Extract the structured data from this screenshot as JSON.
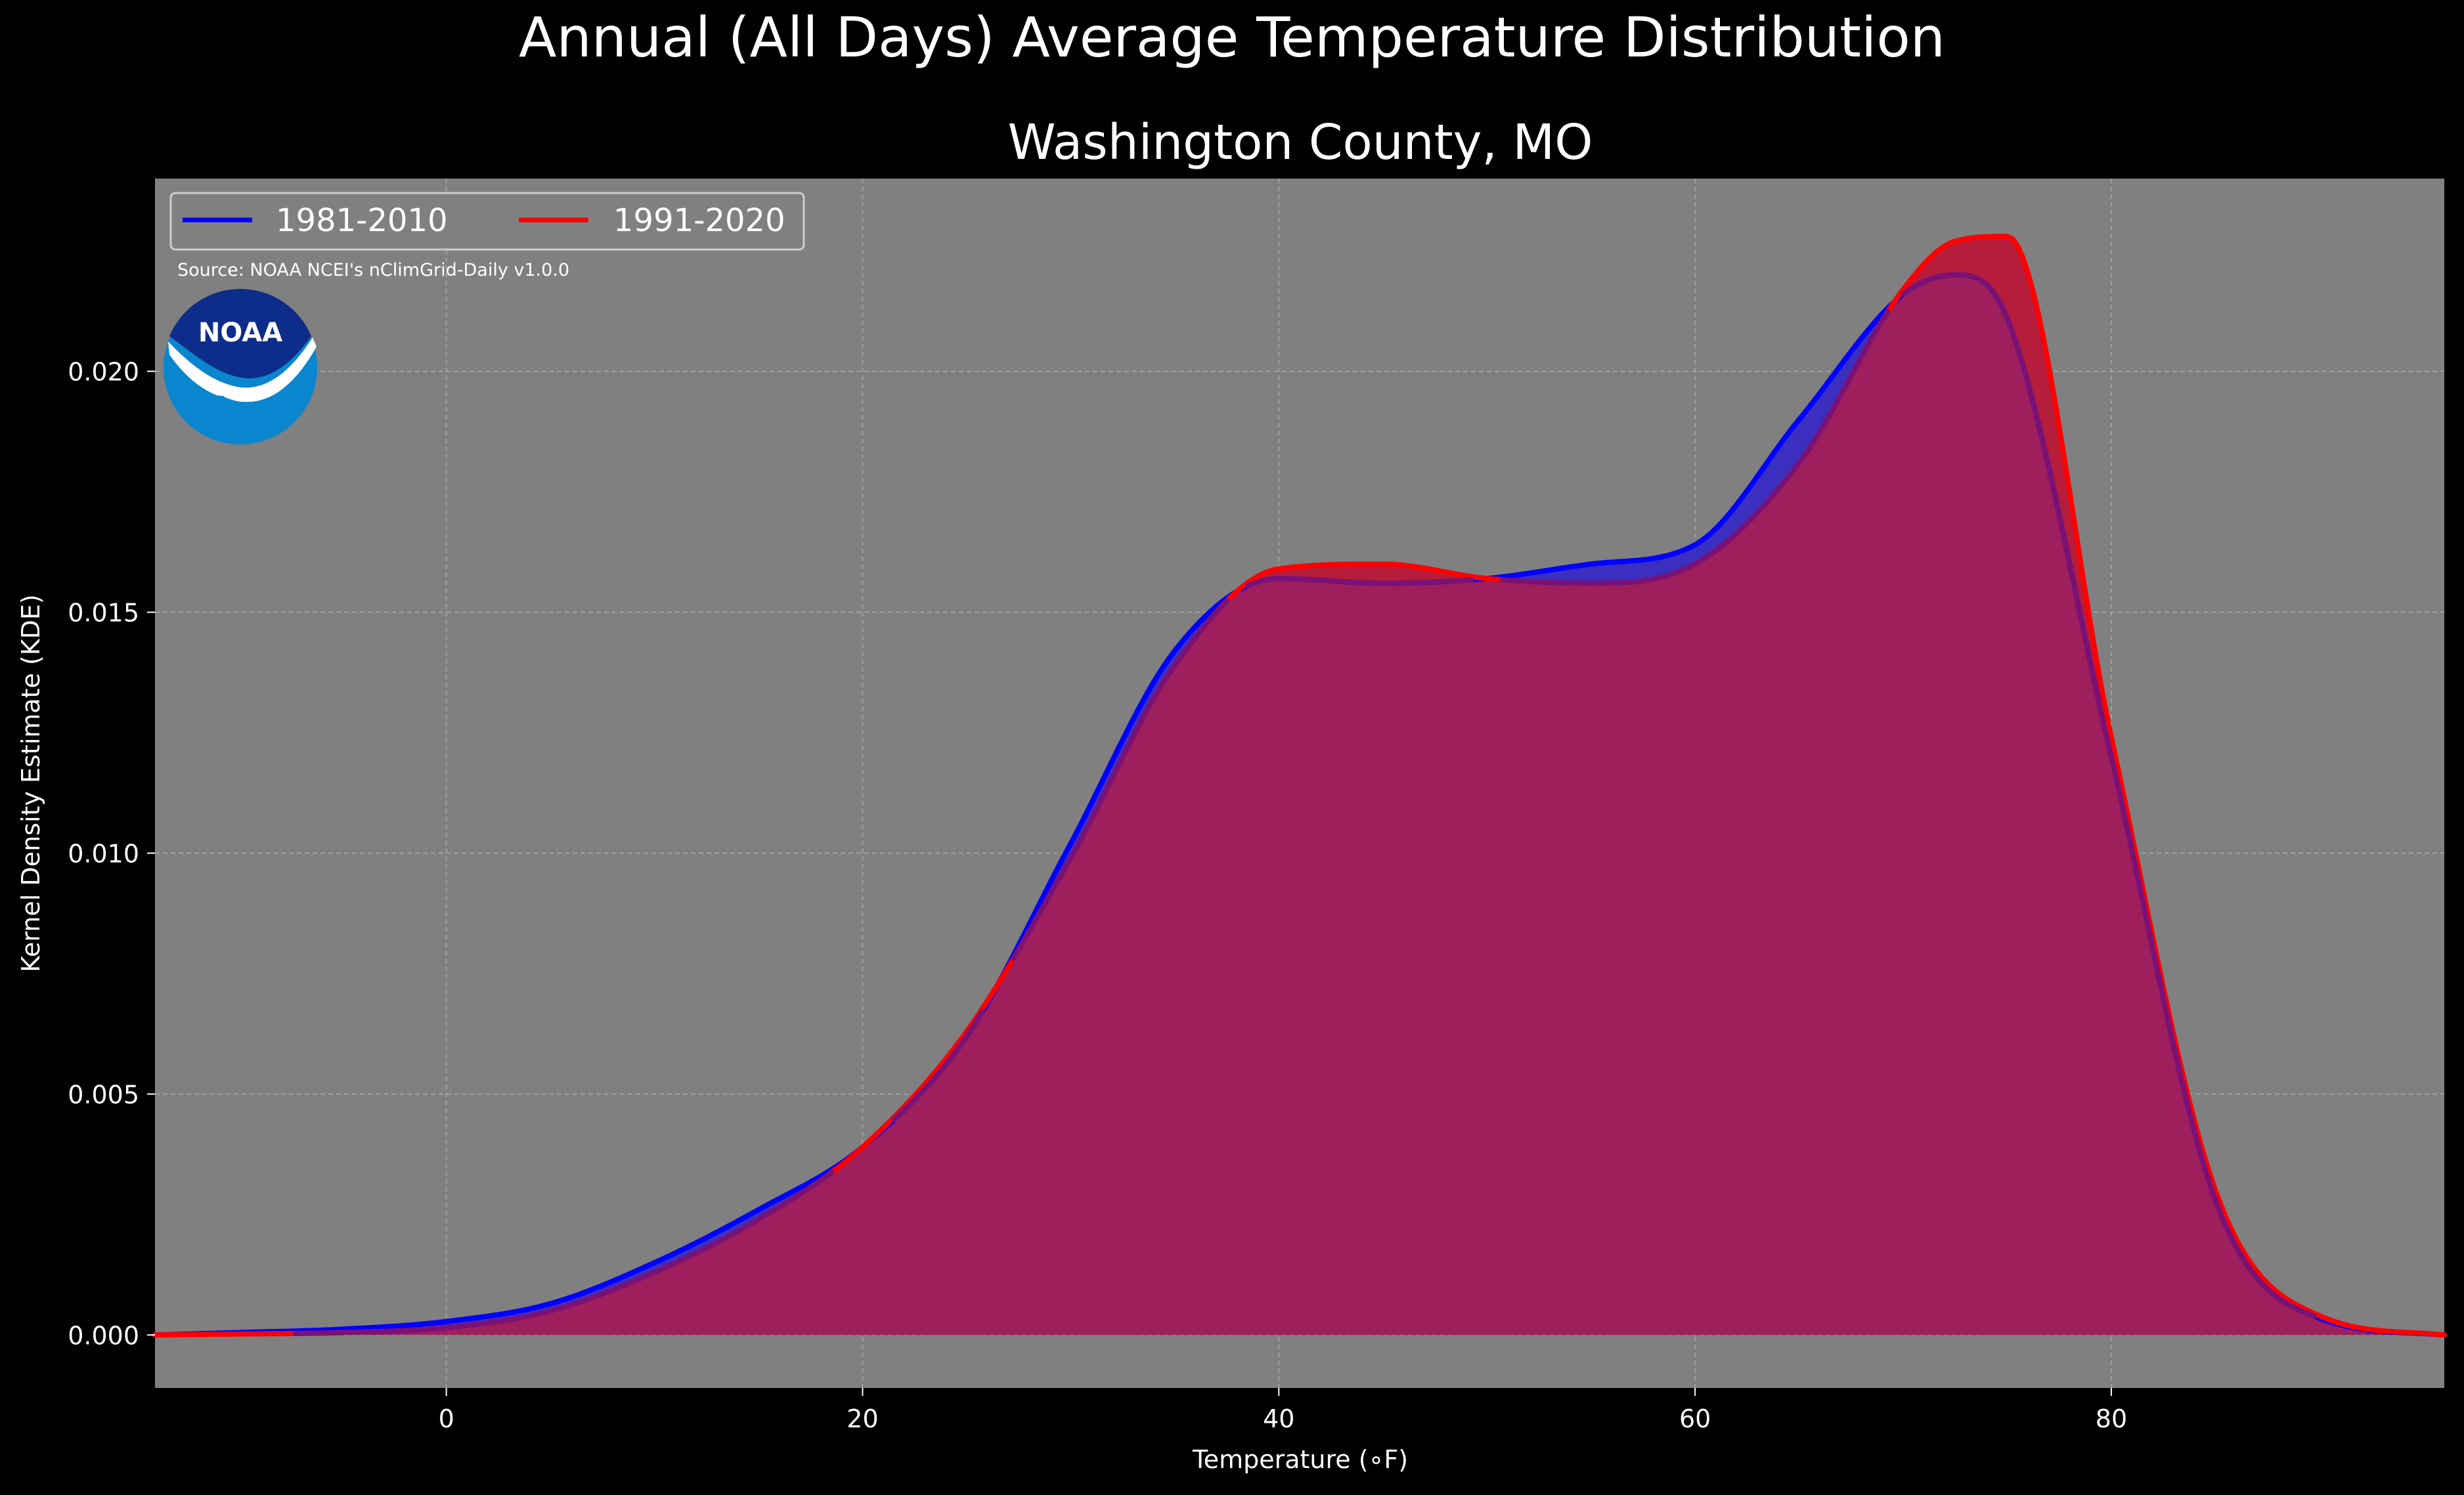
{
  "chart_data": {
    "type": "area",
    "suptitle": "Annual (All Days) Average Temperature Distribution",
    "title": "Washington County, MO",
    "xlabel": "Temperature (∘F)",
    "ylabel": "Kernel Density Estimate (KDE)",
    "xlim": [
      -14,
      96
    ],
    "ylim": [
      -0.0011,
      0.024
    ],
    "xticks": [
      0,
      20,
      40,
      60,
      80
    ],
    "xtick_labels": [
      "0",
      "20",
      "40",
      "60",
      "80"
    ],
    "yticks": [
      0.0,
      0.005,
      0.01,
      0.015,
      0.02
    ],
    "ytick_labels": [
      "0.000",
      "0.005",
      "0.010",
      "0.015",
      "0.020"
    ],
    "grid": true,
    "legend_position": "top-left",
    "source": "Source: NOAA NCEI's nClimGrid-Daily v1.0.0",
    "x": [
      -14,
      -10,
      -5,
      0,
      5,
      10,
      15,
      20,
      25,
      30,
      35,
      40,
      45,
      50,
      55,
      60,
      65,
      70,
      72.5,
      75,
      80,
      85,
      90,
      96
    ],
    "series": [
      {
        "name": "1981-2010",
        "color": "#0000ff",
        "fill": "#3a2fbf",
        "values": [
          0.0,
          5e-05,
          0.00012,
          0.00028,
          0.00065,
          0.0015,
          0.0026,
          0.0039,
          0.0062,
          0.0102,
          0.0142,
          0.0157,
          0.0156,
          0.0157,
          0.016,
          0.0164,
          0.019,
          0.0216,
          0.022,
          0.0211,
          0.012,
          0.0028,
          0.00035,
          0.0
        ]
      },
      {
        "name": "1991-2020",
        "color": "#ff0000",
        "fill": "#b51d3a",
        "values": [
          0.0,
          2e-05,
          5e-05,
          0.00015,
          0.0005,
          0.0013,
          0.0024,
          0.0039,
          0.0063,
          0.0099,
          0.0139,
          0.0159,
          0.016,
          0.0157,
          0.0156,
          0.016,
          0.0181,
          0.0217,
          0.0227,
          0.0228,
          0.0124,
          0.003,
          0.0004,
          0.0
        ]
      }
    ]
  },
  "logo": {
    "text": "NOAA",
    "circle_color": "#0a86cf",
    "top_color": "#0e2d8a"
  },
  "colors": {
    "background": "#000000",
    "axes_background": "#808080",
    "grid": "#b0b0b0",
    "overlap": "#9e1f5c"
  }
}
